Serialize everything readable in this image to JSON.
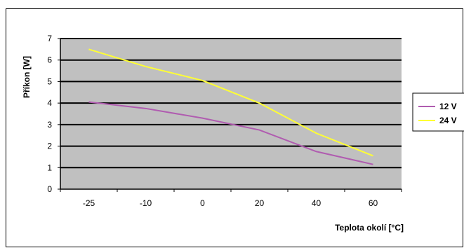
{
  "chart_data": {
    "type": "line",
    "title": "",
    "xlabel": "Teplota okolí [°C]",
    "ylabel": "Příkon [W]",
    "x_tick_labels": [
      "-25",
      "-10",
      "0",
      "20",
      "40",
      "60"
    ],
    "y_tick_labels": [
      "0",
      "1",
      "2",
      "3",
      "4",
      "5",
      "6",
      "7"
    ],
    "ylim": [
      0,
      7
    ],
    "grid": true,
    "legend_position": "right",
    "plot_background": "#c0c0c0",
    "series": [
      {
        "name": "12 V",
        "color": "#b05cb0",
        "values": [
          4.05,
          3.75,
          3.3,
          2.75,
          1.75,
          1.15
        ]
      },
      {
        "name": "24 V",
        "color": "#ffff33",
        "values": [
          6.5,
          5.7,
          5.05,
          4.0,
          2.6,
          1.55
        ]
      }
    ]
  }
}
